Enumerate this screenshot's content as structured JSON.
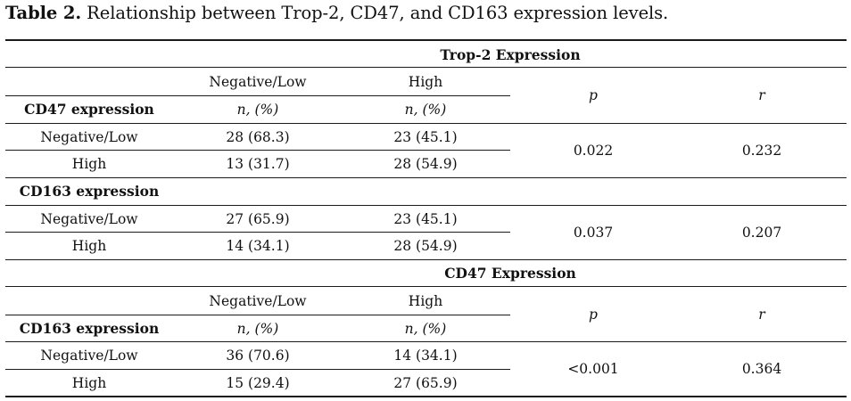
{
  "caption": {
    "label": "Table 2.",
    "text": " Relationship between Trop-2, CD47, and CD163 expression levels."
  },
  "section1": {
    "header": "Trop-2 Expression",
    "col_neg": "Negative/Low",
    "col_high": "High",
    "col_p": "p",
    "col_r": "r",
    "group1": {
      "label": "CD47 expression",
      "sub_neg": "n, (%)",
      "sub_high": "n, (%)",
      "rows": [
        {
          "label": "Negative/Low",
          "neg": "28 (68.3)",
          "high": "23 (45.1)"
        },
        {
          "label": "High",
          "neg": "13 (31.7)",
          "high": "28 (54.9)"
        }
      ],
      "p": "0.022",
      "r": "0.232"
    },
    "group2": {
      "label": "CD163 expression",
      "rows": [
        {
          "label": "Negative/Low",
          "neg": "27 (65.9)",
          "high": "23 (45.1)"
        },
        {
          "label": "High",
          "neg": "14 (34.1)",
          "high": "28 (54.9)"
        }
      ],
      "p": "0.037",
      "r": "0.207"
    }
  },
  "section2": {
    "header": "CD47 Expression",
    "col_neg": "Negative/Low",
    "col_high": "High",
    "col_p": "p",
    "col_r": "r",
    "group1": {
      "label": "CD163 expression",
      "sub_neg": "n, (%)",
      "sub_high": "n, (%)",
      "rows": [
        {
          "label": "Negative/Low",
          "neg": "36 (70.6)",
          "high": "14 (34.1)"
        },
        {
          "label": "High",
          "neg": "15 (29.4)",
          "high": "27 (65.9)"
        }
      ],
      "p": "<0.001",
      "r": "0.364"
    }
  }
}
